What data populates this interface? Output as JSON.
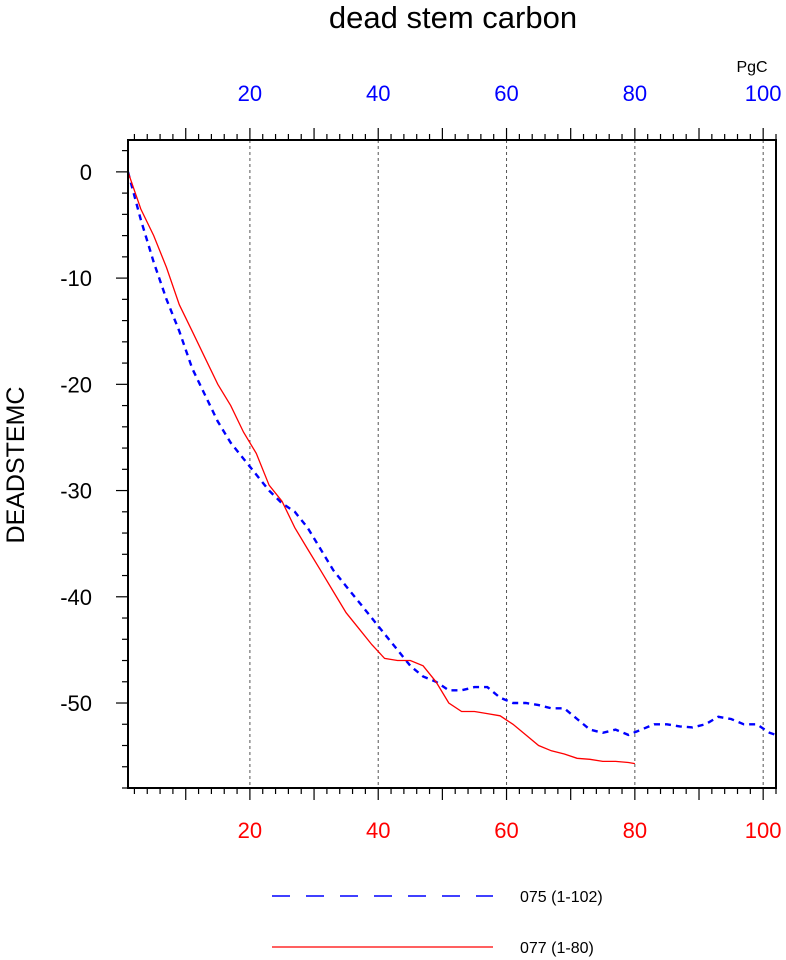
{
  "colors": {
    "top_axis": "#0000ff",
    "bottom_axis": "#ff0000",
    "series_075": "#0000ff",
    "series_077": "#ff0000",
    "grid": "#555555"
  },
  "chart_data": {
    "type": "line",
    "title": "dead stem carbon",
    "ylabel": "DEADSTEMC",
    "units_label": "PgC",
    "xlim": [
      1,
      102
    ],
    "ylim": [
      -58,
      3
    ],
    "top_axis": {
      "color": "blue",
      "ticks": [
        20,
        40,
        60,
        80,
        100
      ]
    },
    "bottom_axis": {
      "color": "red",
      "ticks": [
        20,
        40,
        60,
        80,
        100
      ]
    },
    "y_ticks": [
      0,
      -10,
      -20,
      -30,
      -40,
      -50
    ],
    "grid": {
      "vertical_dotted_at": [
        20,
        40,
        60,
        80,
        100
      ]
    },
    "legend_position": "bottom",
    "series": [
      {
        "name": "075 (1-102)",
        "style": "dashed",
        "color": "blue",
        "x": [
          1,
          3,
          5,
          7,
          9,
          11,
          13,
          15,
          17,
          19,
          21,
          23,
          25,
          27,
          29,
          31,
          33,
          35,
          37,
          39,
          41,
          43,
          45,
          47,
          49,
          51,
          53,
          55,
          57,
          59,
          61,
          63,
          65,
          67,
          69,
          71,
          73,
          75,
          77,
          79,
          81,
          83,
          85,
          87,
          89,
          91,
          93,
          95,
          97,
          99,
          101,
          102
        ],
        "values": [
          0,
          -4.5,
          -8.5,
          -12,
          -15,
          -18.5,
          -21,
          -23.5,
          -25.5,
          -27,
          -28.5,
          -30,
          -31.2,
          -32,
          -33.5,
          -35.5,
          -37.5,
          -39,
          -40.5,
          -42,
          -43.5,
          -45,
          -46.5,
          -47.5,
          -48,
          -48.8,
          -48.8,
          -48.5,
          -48.5,
          -49.5,
          -50,
          -50,
          -50.2,
          -50.5,
          -50.5,
          -51.5,
          -52.5,
          -52.8,
          -52.5,
          -53,
          -52.5,
          -52,
          -52,
          -52.2,
          -52.3,
          -52,
          -51.3,
          -51.5,
          -52,
          -52,
          -52.8,
          -53
        ]
      },
      {
        "name": "077 (1-80)",
        "style": "solid",
        "color": "red",
        "x": [
          1,
          3,
          5,
          7,
          9,
          11,
          13,
          15,
          17,
          19,
          21,
          23,
          25,
          27,
          29,
          31,
          33,
          35,
          37,
          39,
          41,
          43,
          45,
          47,
          49,
          51,
          53,
          55,
          57,
          59,
          61,
          63,
          65,
          67,
          69,
          71,
          73,
          75,
          77,
          79,
          80
        ],
        "values": [
          0,
          -3.5,
          -6,
          -9,
          -12.5,
          -15,
          -17.5,
          -20,
          -22,
          -24.5,
          -26.5,
          -29.5,
          -31,
          -33.5,
          -35.5,
          -37.5,
          -39.5,
          -41.5,
          -43,
          -44.5,
          -45.8,
          -46,
          -46,
          -46.5,
          -48,
          -50,
          -50.8,
          -50.8,
          -51,
          -51.2,
          -52,
          -53,
          -54,
          -54.5,
          -54.8,
          -55.2,
          -55.3,
          -55.5,
          -55.5,
          -55.6,
          -55.7
        ]
      }
    ]
  }
}
